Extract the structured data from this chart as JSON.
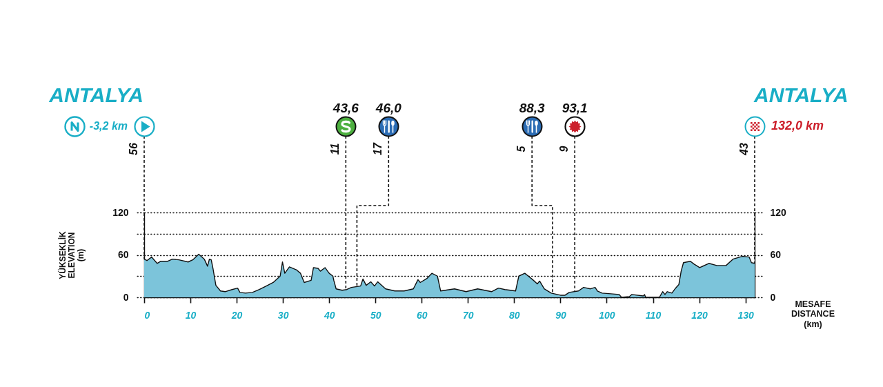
{
  "chart_data": {
    "type": "area",
    "xlabel": "MESAFE\nDISTANCE\n(km)",
    "ylabel": "YÜKSEKLİK\nELEVATION\n(m)",
    "x": [
      0,
      0.6,
      1.6,
      2.8,
      3.6,
      5.1,
      6.1,
      7.5,
      9.5,
      10.5,
      11.8,
      13.0,
      13.7,
      14.1,
      14.5,
      14.9,
      15.5,
      16.5,
      17.5,
      19.0,
      20.2,
      20.7,
      21.9,
      23.4,
      24.9,
      26.4,
      27.9,
      29.4,
      29.9,
      30.4,
      31.4,
      32.9,
      33.8,
      34.6,
      36.1,
      36.6,
      37.6,
      38.1,
      39.1,
      40.0,
      40.8,
      41.0,
      41.5,
      42.8,
      43.8,
      44.8,
      46.8,
      47.3,
      48.0,
      49.0,
      49.8,
      50.5,
      52.2,
      54.2,
      56.2,
      58.2,
      59.2,
      59.7,
      61.2,
      62.2,
      63.4,
      64.1,
      67.1,
      69.6,
      72.1,
      75.1,
      76.6,
      78.0,
      80.3,
      81.0,
      82.3,
      84.0,
      85.0,
      85.5,
      86.5,
      88.0,
      90.0,
      91.0,
      91.9,
      93.9,
      95.0,
      96.5,
      97.5,
      98.0,
      99.0,
      100.9,
      102.7,
      103.2,
      104.9,
      105.4,
      107.9,
      108.2,
      108.4,
      111.4,
      112.1,
      112.6,
      113.1,
      114.1,
      114.9,
      115.6,
      116.1,
      116.6,
      118.1,
      118.9,
      120.1,
      122.1,
      123.8,
      125.8,
      127.3,
      129.3,
      130.8,
      131.3,
      132.0
    ],
    "values": [
      54,
      52,
      57,
      48,
      51,
      51,
      54,
      53,
      50,
      53,
      61,
      54,
      44,
      54,
      53,
      40,
      17,
      9,
      8,
      11,
      13,
      7,
      6,
      7,
      11,
      16,
      21,
      30,
      50,
      34,
      43,
      39,
      34,
      21,
      24,
      42,
      41,
      37,
      42,
      34,
      30,
      24,
      12,
      10,
      11,
      14,
      16,
      26,
      17,
      22,
      16,
      22,
      12,
      9,
      9,
      12,
      25,
      21,
      27,
      34,
      30,
      9,
      12,
      8,
      12,
      8,
      13,
      11,
      9,
      30,
      34,
      25,
      19,
      23,
      12,
      6,
      3,
      3,
      7,
      9,
      14,
      12,
      14,
      9,
      6,
      5,
      4,
      0,
      1,
      4,
      2,
      4,
      0,
      0,
      8,
      4,
      8,
      6,
      13,
      18,
      37,
      49,
      51,
      47,
      42,
      48,
      45,
      45,
      54,
      58,
      57,
      49,
      48
    ],
    "color": "#7cc4da",
    "xlim": [
      0,
      132
    ],
    "xticks": [
      0,
      10,
      20,
      30,
      40,
      50,
      60,
      70,
      80,
      90,
      100,
      110,
      120,
      130
    ],
    "ylim": [
      0,
      120
    ],
    "yticks": [
      0,
      {
        "value": 30,
        "label": null
      },
      60,
      {
        "value": 90,
        "label": null
      },
      120
    ],
    "y2lim": [
      0,
      120
    ],
    "y2ticks": [
      0,
      {
        "value": 30,
        "label": null
      },
      60,
      {
        "value": 90,
        "label": null
      },
      120
    ],
    "grid": "y",
    "ref_lines": [
      {
        "axis": "x",
        "value": 0,
        "label": "ANTALYA",
        "line_style": "dashed"
      },
      {
        "axis": "x",
        "value": 43.6,
        "label": "43,6",
        "line_style": "dashed"
      },
      {
        "axis": "x",
        "value": 46.0,
        "label": "46,0",
        "line_style": "dashed"
      },
      {
        "axis": "x",
        "value": 88.3,
        "label": "88,3",
        "line_style": "dashed"
      },
      {
        "axis": "x",
        "value": 93.1,
        "label": "93,1",
        "line_style": "dashed"
      },
      {
        "axis": "x",
        "value": 132.0,
        "label": "ANTALYA",
        "line_style": "dashed"
      }
    ],
    "annotations": [
      "-3,2 km",
      "132,0 km",
      "56",
      "11",
      "17",
      "5",
      "9",
      "43"
    ]
  }
}
